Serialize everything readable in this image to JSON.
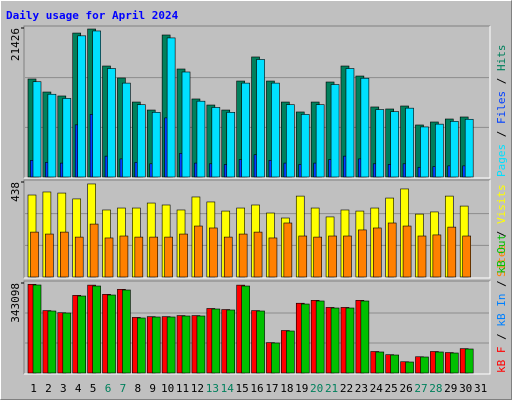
{
  "chart_data": [
    {
      "type": "bar",
      "title": "Daily usage for April 2024",
      "legend_separator": " / ",
      "draw_order": "reverse",
      "ylim": [
        0,
        21426
      ],
      "yticks": [
        21426
      ],
      "series": [
        {
          "name": "Pages",
          "color": "#00e0ff",
          "values": [
            13700,
            11900,
            11300,
            20300,
            21000,
            15600,
            13500,
            10400,
            9300,
            20000,
            15100,
            10900,
            10000,
            9300,
            13500,
            16900,
            13500,
            10400,
            9000,
            10400,
            13300,
            15600,
            14200,
            9700,
            9400,
            9900,
            7200,
            7600,
            8000,
            8300,
            null
          ]
        },
        {
          "name": "Files",
          "color": "#0040ff",
          "values": [
            2400,
            2100,
            2000,
            7500,
            9000,
            3000,
            2600,
            2100,
            1900,
            8500,
            3400,
            2000,
            1900,
            1800,
            2500,
            3200,
            2400,
            2000,
            1800,
            2000,
            2500,
            3000,
            2600,
            1900,
            1800,
            1900,
            1400,
            1500,
            1600,
            1600,
            null
          ]
        },
        {
          "name": "Hits",
          "color": "#00805c",
          "values": [
            14090,
            12220,
            11650,
            20700,
            21280,
            15960,
            14240,
            10780,
            9630,
            20420,
            15530,
            11220,
            10350,
            9630,
            13800,
            17260,
            13800,
            10780,
            9350,
            10780,
            13660,
            15960,
            14520,
            10070,
            9780,
            10210,
            7480,
            7910,
            8340,
            8630,
            null
          ]
        }
      ]
    },
    {
      "type": "bar",
      "legend_separator": " / ",
      "draw_order": "reverse",
      "ylim": [
        0,
        438
      ],
      "yticks": [
        438
      ],
      "series": [
        {
          "name": "Sites",
          "color": "#ff8000",
          "values": [
            207,
            198,
            207,
            184,
            244,
            180,
            189,
            184,
            184,
            184,
            198,
            235,
            226,
            184,
            198,
            207,
            180,
            249,
            189,
            184,
            189,
            189,
            217,
            226,
            249,
            235,
            189,
            194,
            230,
            189,
            null
          ]
        },
        {
          "name": "Visits",
          "color": "#ffff00",
          "values": [
            378,
            392,
            387,
            360,
            429,
            309,
            318,
            318,
            341,
            332,
            309,
            369,
            346,
            304,
            318,
            332,
            295,
            272,
            373,
            318,
            277,
            309,
            304,
            318,
            364,
            406,
            290,
            300,
            373,
            327,
            null
          ]
        }
      ]
    },
    {
      "type": "bar",
      "legend_separator": " / ",
      "draw_order": "forward",
      "ylim": [
        0,
        343098
      ],
      "yticks": [
        343098
      ],
      "categories": [
        "1",
        "2",
        "3",
        "4",
        "5",
        "6",
        "7",
        "8",
        "9",
        "10",
        "11",
        "12",
        "13",
        "14",
        "15",
        "16",
        "17",
        "18",
        "19",
        "20",
        "21",
        "22",
        "23",
        "24",
        "25",
        "26",
        "27",
        "28",
        "29",
        "30",
        "31"
      ],
      "category_colors": [
        "#000000",
        "#000000",
        "#000000",
        "#000000",
        "#000000",
        "#00805c",
        "#00805c",
        "#000000",
        "#000000",
        "#000000",
        "#000000",
        "#000000",
        "#00805c",
        "#00805c",
        "#000000",
        "#000000",
        "#000000",
        "#000000",
        "#000000",
        "#00805c",
        "#00805c",
        "#000000",
        "#000000",
        "#000000",
        "#000000",
        "#000000",
        "#00805c",
        "#00805c",
        "#000000",
        "#000000",
        "#000000"
      ],
      "series": [
        {
          "name": "kB F",
          "color": "#ff0000",
          "values": [
            338000,
            238000,
            230000,
            296000,
            335000,
            300000,
            319000,
            212000,
            215000,
            215000,
            219000,
            219000,
            246000,
            242000,
            335000,
            238000,
            116000,
            162000,
            266000,
            277000,
            250000,
            250000,
            277000,
            82000,
            70000,
            43000,
            62000,
            82000,
            78000,
            93000,
            null
          ]
        },
        {
          "name": "kB In",
          "color": "#0080ff",
          "values": [
            0,
            0,
            0,
            0,
            0,
            0,
            0,
            0,
            0,
            0,
            0,
            0,
            0,
            0,
            0,
            0,
            0,
            0,
            0,
            0,
            0,
            0,
            0,
            0,
            0,
            0,
            0,
            0,
            0,
            0,
            null
          ]
        },
        {
          "name": "kB Out",
          "color": "#00c000",
          "values": [
            335500,
            236300,
            228700,
            293500,
            331600,
            297300,
            316400,
            209700,
            213500,
            213500,
            217300,
            217300,
            244000,
            240200,
            331600,
            236300,
            114400,
            160100,
            263000,
            274500,
            247800,
            247800,
            274500,
            80100,
            68600,
            41900,
            61000,
            80100,
            76200,
            91500,
            null
          ]
        }
      ]
    }
  ]
}
